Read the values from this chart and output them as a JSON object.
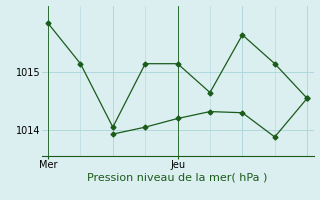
{
  "xlabel": "Pression niveau de la mer( hPa )",
  "background_color": "#dbeef0",
  "grid_color": "#b0d8dc",
  "line_color": "#1a5c1a",
  "line1_x": [
    0,
    1,
    2,
    3,
    4,
    5,
    6,
    7,
    8
  ],
  "line1_y": [
    1015.85,
    1015.15,
    1014.05,
    1015.15,
    1015.15,
    1014.65,
    1015.65,
    1015.15,
    1014.55
  ],
  "line2_x": [
    2,
    3,
    4,
    5,
    6,
    7,
    8
  ],
  "line2_y": [
    1013.93,
    1014.05,
    1014.2,
    1014.32,
    1014.3,
    1013.88,
    1014.55
  ],
  "mer_tick": 0,
  "jeu_tick": 4,
  "day_labels": [
    "Mer",
    "Jeu"
  ],
  "vline_positions": [
    0,
    4
  ],
  "ylim": [
    1013.55,
    1016.15
  ],
  "yticks": [
    1014.0,
    1015.0
  ],
  "xlim": [
    -0.2,
    8.2
  ],
  "tick_fontsize": 7,
  "xlabel_fontsize": 8
}
